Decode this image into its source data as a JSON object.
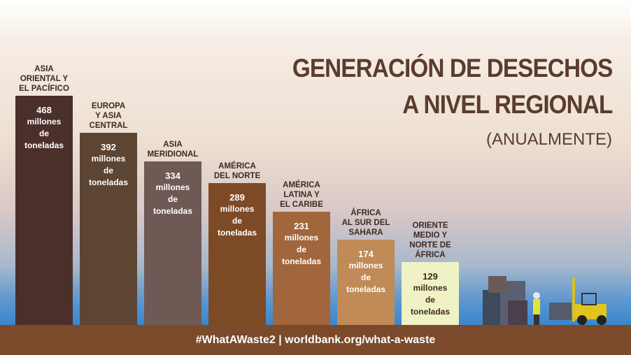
{
  "chart_data": {
    "type": "bar",
    "title": "GENERACIÓN DE DESECHOS\nA NIVEL REGIONAL",
    "subtitle": "(ANUALMENTE)",
    "categories": [
      "ASIA\nORIENTAL Y\nEL PACÍFICO",
      "EUROPA\nY ASIA\nCENTRAL",
      "ASIA\nMERIDIONAL",
      "AMÉRICA\nDEL NORTE",
      "AMÉRICA\nLATINA Y\nEL CARIBE",
      "ÁFRICA\nAL SUR DEL\nSAHARA",
      "ORIENTE\nMEDIO Y\nNORTE DE\nÁFRICA"
    ],
    "values": [
      468,
      392,
      334,
      289,
      231,
      174,
      129
    ],
    "unit_label": "millones\nde\ntoneladas",
    "colors": [
      "#4b2f2b",
      "#5d4534",
      "#6f5954",
      "#7d4a26",
      "#a1663b",
      "#c08b56",
      "#eff2c4"
    ],
    "footer": "#WhatAWaste2 | worldbank.org/what-a-waste"
  }
}
